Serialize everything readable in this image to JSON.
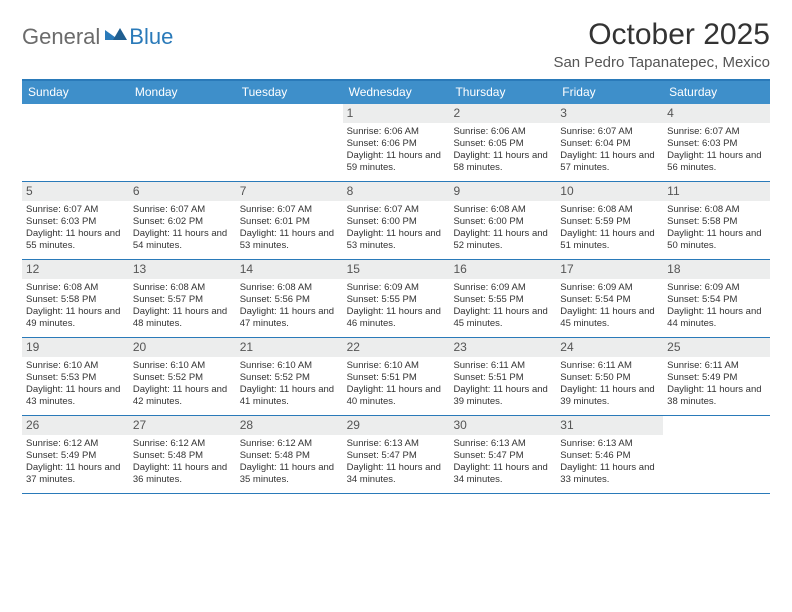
{
  "logo": {
    "part1": "General",
    "part2": "Blue"
  },
  "title": "October 2025",
  "location": "San Pedro Tapanatepec, Mexico",
  "colors": {
    "brand": "#2a7ab9",
    "header_bg": "#3e8fca",
    "header_fg": "#ffffff",
    "daynum_bg": "#eceded",
    "rule": "#2a7ab9",
    "text": "#333333",
    "muted": "#6b6b6b"
  },
  "day_headers": [
    "Sunday",
    "Monday",
    "Tuesday",
    "Wednesday",
    "Thursday",
    "Friday",
    "Saturday"
  ],
  "weeks": [
    {
      "days": [
        {
          "n": "",
          "sunrise": "",
          "sunset": "",
          "daylight": ""
        },
        {
          "n": "",
          "sunrise": "",
          "sunset": "",
          "daylight": ""
        },
        {
          "n": "",
          "sunrise": "",
          "sunset": "",
          "daylight": ""
        },
        {
          "n": "1",
          "sunrise": "Sunrise: 6:06 AM",
          "sunset": "Sunset: 6:06 PM",
          "daylight": "Daylight: 11 hours and 59 minutes."
        },
        {
          "n": "2",
          "sunrise": "Sunrise: 6:06 AM",
          "sunset": "Sunset: 6:05 PM",
          "daylight": "Daylight: 11 hours and 58 minutes."
        },
        {
          "n": "3",
          "sunrise": "Sunrise: 6:07 AM",
          "sunset": "Sunset: 6:04 PM",
          "daylight": "Daylight: 11 hours and 57 minutes."
        },
        {
          "n": "4",
          "sunrise": "Sunrise: 6:07 AM",
          "sunset": "Sunset: 6:03 PM",
          "daylight": "Daylight: 11 hours and 56 minutes."
        }
      ]
    },
    {
      "days": [
        {
          "n": "5",
          "sunrise": "Sunrise: 6:07 AM",
          "sunset": "Sunset: 6:03 PM",
          "daylight": "Daylight: 11 hours and 55 minutes."
        },
        {
          "n": "6",
          "sunrise": "Sunrise: 6:07 AM",
          "sunset": "Sunset: 6:02 PM",
          "daylight": "Daylight: 11 hours and 54 minutes."
        },
        {
          "n": "7",
          "sunrise": "Sunrise: 6:07 AM",
          "sunset": "Sunset: 6:01 PM",
          "daylight": "Daylight: 11 hours and 53 minutes."
        },
        {
          "n": "8",
          "sunrise": "Sunrise: 6:07 AM",
          "sunset": "Sunset: 6:00 PM",
          "daylight": "Daylight: 11 hours and 53 minutes."
        },
        {
          "n": "9",
          "sunrise": "Sunrise: 6:08 AM",
          "sunset": "Sunset: 6:00 PM",
          "daylight": "Daylight: 11 hours and 52 minutes."
        },
        {
          "n": "10",
          "sunrise": "Sunrise: 6:08 AM",
          "sunset": "Sunset: 5:59 PM",
          "daylight": "Daylight: 11 hours and 51 minutes."
        },
        {
          "n": "11",
          "sunrise": "Sunrise: 6:08 AM",
          "sunset": "Sunset: 5:58 PM",
          "daylight": "Daylight: 11 hours and 50 minutes."
        }
      ]
    },
    {
      "days": [
        {
          "n": "12",
          "sunrise": "Sunrise: 6:08 AM",
          "sunset": "Sunset: 5:58 PM",
          "daylight": "Daylight: 11 hours and 49 minutes."
        },
        {
          "n": "13",
          "sunrise": "Sunrise: 6:08 AM",
          "sunset": "Sunset: 5:57 PM",
          "daylight": "Daylight: 11 hours and 48 minutes."
        },
        {
          "n": "14",
          "sunrise": "Sunrise: 6:08 AM",
          "sunset": "Sunset: 5:56 PM",
          "daylight": "Daylight: 11 hours and 47 minutes."
        },
        {
          "n": "15",
          "sunrise": "Sunrise: 6:09 AM",
          "sunset": "Sunset: 5:55 PM",
          "daylight": "Daylight: 11 hours and 46 minutes."
        },
        {
          "n": "16",
          "sunrise": "Sunrise: 6:09 AM",
          "sunset": "Sunset: 5:55 PM",
          "daylight": "Daylight: 11 hours and 45 minutes."
        },
        {
          "n": "17",
          "sunrise": "Sunrise: 6:09 AM",
          "sunset": "Sunset: 5:54 PM",
          "daylight": "Daylight: 11 hours and 45 minutes."
        },
        {
          "n": "18",
          "sunrise": "Sunrise: 6:09 AM",
          "sunset": "Sunset: 5:54 PM",
          "daylight": "Daylight: 11 hours and 44 minutes."
        }
      ]
    },
    {
      "days": [
        {
          "n": "19",
          "sunrise": "Sunrise: 6:10 AM",
          "sunset": "Sunset: 5:53 PM",
          "daylight": "Daylight: 11 hours and 43 minutes."
        },
        {
          "n": "20",
          "sunrise": "Sunrise: 6:10 AM",
          "sunset": "Sunset: 5:52 PM",
          "daylight": "Daylight: 11 hours and 42 minutes."
        },
        {
          "n": "21",
          "sunrise": "Sunrise: 6:10 AM",
          "sunset": "Sunset: 5:52 PM",
          "daylight": "Daylight: 11 hours and 41 minutes."
        },
        {
          "n": "22",
          "sunrise": "Sunrise: 6:10 AM",
          "sunset": "Sunset: 5:51 PM",
          "daylight": "Daylight: 11 hours and 40 minutes."
        },
        {
          "n": "23",
          "sunrise": "Sunrise: 6:11 AM",
          "sunset": "Sunset: 5:51 PM",
          "daylight": "Daylight: 11 hours and 39 minutes."
        },
        {
          "n": "24",
          "sunrise": "Sunrise: 6:11 AM",
          "sunset": "Sunset: 5:50 PM",
          "daylight": "Daylight: 11 hours and 39 minutes."
        },
        {
          "n": "25",
          "sunrise": "Sunrise: 6:11 AM",
          "sunset": "Sunset: 5:49 PM",
          "daylight": "Daylight: 11 hours and 38 minutes."
        }
      ]
    },
    {
      "days": [
        {
          "n": "26",
          "sunrise": "Sunrise: 6:12 AM",
          "sunset": "Sunset: 5:49 PM",
          "daylight": "Daylight: 11 hours and 37 minutes."
        },
        {
          "n": "27",
          "sunrise": "Sunrise: 6:12 AM",
          "sunset": "Sunset: 5:48 PM",
          "daylight": "Daylight: 11 hours and 36 minutes."
        },
        {
          "n": "28",
          "sunrise": "Sunrise: 6:12 AM",
          "sunset": "Sunset: 5:48 PM",
          "daylight": "Daylight: 11 hours and 35 minutes."
        },
        {
          "n": "29",
          "sunrise": "Sunrise: 6:13 AM",
          "sunset": "Sunset: 5:47 PM",
          "daylight": "Daylight: 11 hours and 34 minutes."
        },
        {
          "n": "30",
          "sunrise": "Sunrise: 6:13 AM",
          "sunset": "Sunset: 5:47 PM",
          "daylight": "Daylight: 11 hours and 34 minutes."
        },
        {
          "n": "31",
          "sunrise": "Sunrise: 6:13 AM",
          "sunset": "Sunset: 5:46 PM",
          "daylight": "Daylight: 11 hours and 33 minutes."
        },
        {
          "n": "",
          "sunrise": "",
          "sunset": "",
          "daylight": ""
        }
      ]
    }
  ]
}
